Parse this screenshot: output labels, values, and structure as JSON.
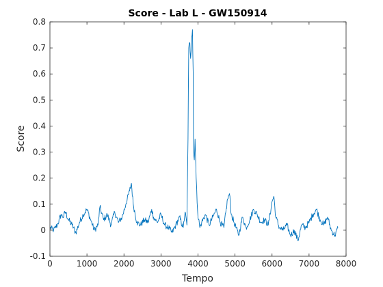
{
  "chart_data": {
    "type": "line",
    "title": "Score - Lab L - GW150914",
    "xlabel": "Tempo",
    "ylabel": "Score",
    "xlim": [
      0,
      8000
    ],
    "ylim": [
      -0.1,
      0.8
    ],
    "xticks": [
      0,
      1000,
      2000,
      3000,
      4000,
      5000,
      6000,
      7000,
      8000
    ],
    "yticks": [
      -0.1,
      0,
      0.1,
      0.2,
      0.3,
      0.4,
      0.5,
      0.6,
      0.7,
      0.8
    ],
    "xtick_labels": [
      "0",
      "1000",
      "2000",
      "3000",
      "4000",
      "5000",
      "6000",
      "7000",
      "8000"
    ],
    "ytick_labels": [
      "-0.1",
      "0",
      "0.1",
      "0.2",
      "0.3",
      "0.4",
      "0.5",
      "0.6",
      "0.7",
      "0.8"
    ],
    "grid": false,
    "series": [
      {
        "color": "#0072BD",
        "x": [
          0,
          100,
          200,
          300,
          350,
          420,
          500,
          600,
          700,
          800,
          900,
          1000,
          1100,
          1200,
          1300,
          1350,
          1450,
          1550,
          1650,
          1750,
          1850,
          1950,
          2050,
          2150,
          2200,
          2250,
          2350,
          2450,
          2550,
          2650,
          2750,
          2800,
          2900,
          3000,
          3100,
          3200,
          3300,
          3400,
          3500,
          3600,
          3650,
          3700,
          3730,
          3750,
          3780,
          3800,
          3830,
          3850,
          3870,
          3880,
          3900,
          3920,
          3950,
          3990,
          4050,
          4100,
          4200,
          4300,
          4400,
          4500,
          4600,
          4700,
          4800,
          4850,
          4900,
          5000,
          5100,
          5200,
          5300,
          5400,
          5500,
          5600,
          5700,
          5800,
          5900,
          6000,
          6050,
          6100,
          6200,
          6300,
          6400,
          6500,
          6600,
          6700,
          6800,
          6900,
          7000,
          7100,
          7200,
          7300,
          7400,
          7500,
          7600,
          7700,
          7780
        ],
        "y": [
          0.01,
          0.0,
          0.02,
          0.06,
          0.05,
          0.07,
          0.04,
          0.02,
          -0.01,
          0.03,
          0.06,
          0.08,
          0.04,
          0.0,
          0.02,
          0.09,
          0.04,
          0.06,
          0.02,
          0.07,
          0.03,
          0.05,
          0.1,
          0.15,
          0.18,
          0.1,
          0.03,
          0.02,
          0.04,
          0.03,
          0.08,
          0.05,
          0.03,
          0.06,
          0.02,
          0.01,
          -0.01,
          0.02,
          0.05,
          0.01,
          0.07,
          0.02,
          0.35,
          0.7,
          0.72,
          0.66,
          0.74,
          0.77,
          0.6,
          0.3,
          0.27,
          0.35,
          0.2,
          0.07,
          0.01,
          0.03,
          0.06,
          0.02,
          0.05,
          0.08,
          0.03,
          0.01,
          0.12,
          0.14,
          0.06,
          0.02,
          -0.02,
          0.05,
          0.01,
          0.04,
          0.08,
          0.06,
          0.03,
          0.04,
          0.02,
          0.11,
          0.13,
          0.05,
          0.01,
          0.0,
          0.02,
          -0.02,
          0.0,
          -0.04,
          0.02,
          0.01,
          0.03,
          0.06,
          0.08,
          0.04,
          0.02,
          0.05,
          0.0,
          -0.02,
          0.01
        ]
      }
    ]
  }
}
